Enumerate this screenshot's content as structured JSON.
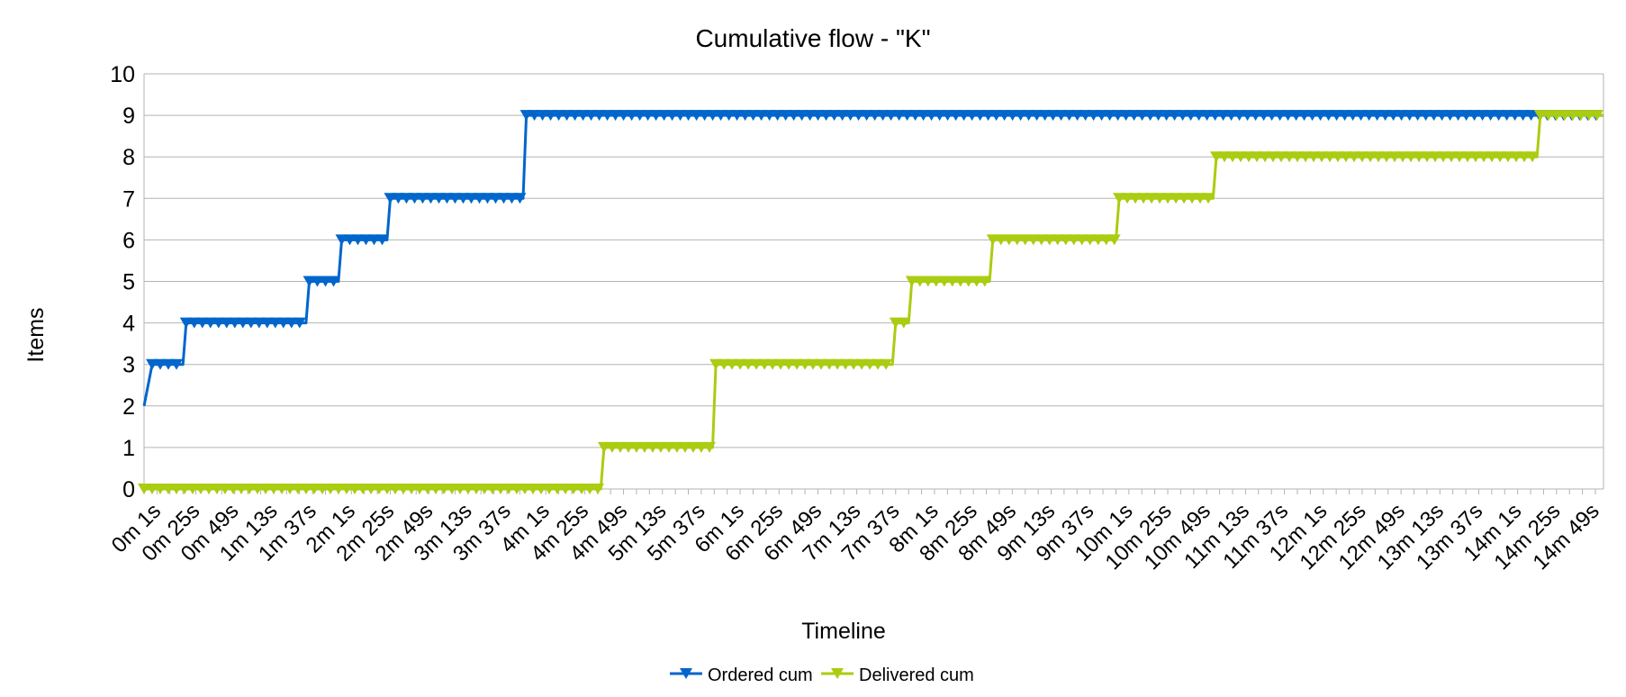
{
  "chart_data": {
    "type": "line",
    "title": "Cumulative flow - \"K\"",
    "xlabel": "Timeline",
    "ylabel": "Items",
    "ylim": [
      0,
      10
    ],
    "yticks": [
      "0",
      "1",
      "2",
      "3",
      "4",
      "5",
      "6",
      "7",
      "8",
      "9",
      "10"
    ],
    "grid": true,
    "legend_position": "bottom",
    "x_tick_labels": [
      "0m 1s",
      "0m 25s",
      "0m 49s",
      "1m 13s",
      "1m 37s",
      "2m 1s",
      "2m 25s",
      "2m 49s",
      "3m 13s",
      "3m 37s",
      "4m 1s",
      "4m 25s",
      "4m 49s",
      "5m 13s",
      "5m 37s",
      "6m 1s",
      "6m 25s",
      "6m 49s",
      "7m 13s",
      "7m 37s",
      "8m 1s",
      "8m 25s",
      "8m 49s",
      "9m 13s",
      "9m 37s",
      "10m 1s",
      "10m 25s",
      "10m 49s",
      "11m 13s",
      "11m 37s",
      "12m 1s",
      "12m 25s",
      "12m 49s",
      "13m 13s",
      "13m 37s",
      "14m 1s",
      "14m 25s",
      "14m 49s"
    ],
    "x_seconds_range": [
      1,
      902
    ],
    "series": [
      {
        "name": "Ordered cum",
        "color": "#0066cc",
        "points": [
          [
            1,
            2
          ],
          [
            6,
            3
          ],
          [
            25,
            3
          ],
          [
            27,
            4
          ],
          [
            101,
            4
          ],
          [
            103,
            5
          ],
          [
            121,
            5
          ],
          [
            123,
            6
          ],
          [
            151,
            6
          ],
          [
            153,
            7
          ],
          [
            235,
            7
          ],
          [
            237,
            9
          ],
          [
            902,
            9
          ]
        ]
      },
      {
        "name": "Delivered cum",
        "color": "#aacc11",
        "points": [
          [
            1,
            0
          ],
          [
            283,
            0
          ],
          [
            285,
            1
          ],
          [
            352,
            1
          ],
          [
            354,
            3
          ],
          [
            463,
            3
          ],
          [
            465,
            4
          ],
          [
            473,
            4
          ],
          [
            475,
            5
          ],
          [
            523,
            5
          ],
          [
            525,
            6
          ],
          [
            601,
            6
          ],
          [
            603,
            7
          ],
          [
            661,
            7
          ],
          [
            663,
            8
          ],
          [
            861,
            8
          ],
          [
            863,
            9
          ],
          [
            902,
            9
          ]
        ]
      }
    ]
  }
}
